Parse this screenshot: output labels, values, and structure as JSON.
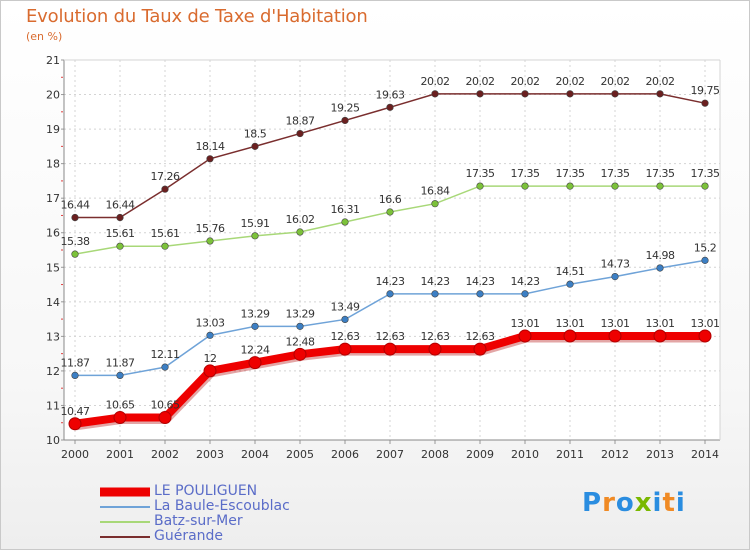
{
  "title": "Evolution du Taux de Taxe d'Habitation",
  "subtitle": "(en %)",
  "logo": {
    "text": "Proxiti",
    "colors": [
      "#2a8de0",
      "#f08a24",
      "#2a8de0",
      "#7ab800",
      "#2a8de0",
      "#f08a24",
      "#2a8de0"
    ]
  },
  "chart_data": {
    "type": "line",
    "x": [
      2000,
      2001,
      2002,
      2003,
      2004,
      2005,
      2006,
      2007,
      2008,
      2009,
      2010,
      2011,
      2012,
      2013,
      2014
    ],
    "ylim": [
      10,
      21
    ],
    "yticks": [
      10,
      11,
      12,
      13,
      14,
      15,
      16,
      17,
      18,
      19,
      20,
      21
    ],
    "grid": true,
    "legend_position": "bottom-left",
    "series": [
      {
        "name": "LE POULIGUEN",
        "color": "#ee0000",
        "thick": true,
        "values": [
          10.47,
          10.65,
          10.65,
          12,
          12.24,
          12.48,
          12.63,
          12.63,
          12.63,
          12.63,
          13.01,
          13.01,
          13.01,
          13.01,
          13.01
        ],
        "labels": [
          "10.47",
          "10.65",
          "10.65",
          "12",
          "12.24",
          "12.48",
          "12.63",
          "12.63",
          "12.63",
          "12.63",
          "13.01",
          "13.01",
          "13.01",
          "13.01",
          "13.01"
        ]
      },
      {
        "name": "La Baule-Escoublac",
        "color": "#6fa3d8",
        "marker": "#3c7fc4",
        "thick": false,
        "values": [
          11.87,
          11.87,
          12.11,
          13.03,
          13.29,
          13.29,
          13.49,
          14.23,
          14.23,
          14.23,
          14.23,
          14.51,
          14.73,
          14.98,
          15.2
        ],
        "labels": [
          "11.87",
          "11.87",
          "12.11",
          "13.03",
          "13.29",
          "13.29",
          "13.49",
          "14.23",
          "14.23",
          "14.23",
          "14.23",
          "14.51",
          "14.73",
          "14.98",
          "15.2"
        ]
      },
      {
        "name": "Batz-sur-Mer",
        "color": "#a8d878",
        "marker": "#7cc23a",
        "thick": false,
        "values": [
          15.38,
          15.61,
          15.61,
          15.76,
          15.91,
          16.02,
          16.31,
          16.6,
          16.84,
          17.35,
          17.35,
          17.35,
          17.35,
          17.35,
          17.35
        ],
        "labels": [
          "15.38",
          "15.61",
          "15.61",
          "15.76",
          "15.91",
          "16.02",
          "16.31",
          "16.6",
          "16.84",
          "17.35",
          "17.35",
          "17.35",
          "17.35",
          "17.35",
          "17.35"
        ]
      },
      {
        "name": "Guérande",
        "color": "#7a2e2e",
        "marker": "#6b2020",
        "thick": false,
        "values": [
          16.44,
          16.44,
          17.26,
          18.14,
          18.5,
          18.87,
          19.25,
          19.63,
          20.02,
          20.02,
          20.02,
          20.02,
          20.02,
          20.02,
          19.75
        ],
        "labels": [
          "16.44",
          "16.44",
          "17.26",
          "18.14",
          "18.5",
          "18.87",
          "19.25",
          "19.63",
          "20.02",
          "20.02",
          "20.02",
          "20.02",
          "20.02",
          "20.02",
          "19.75"
        ]
      }
    ]
  }
}
